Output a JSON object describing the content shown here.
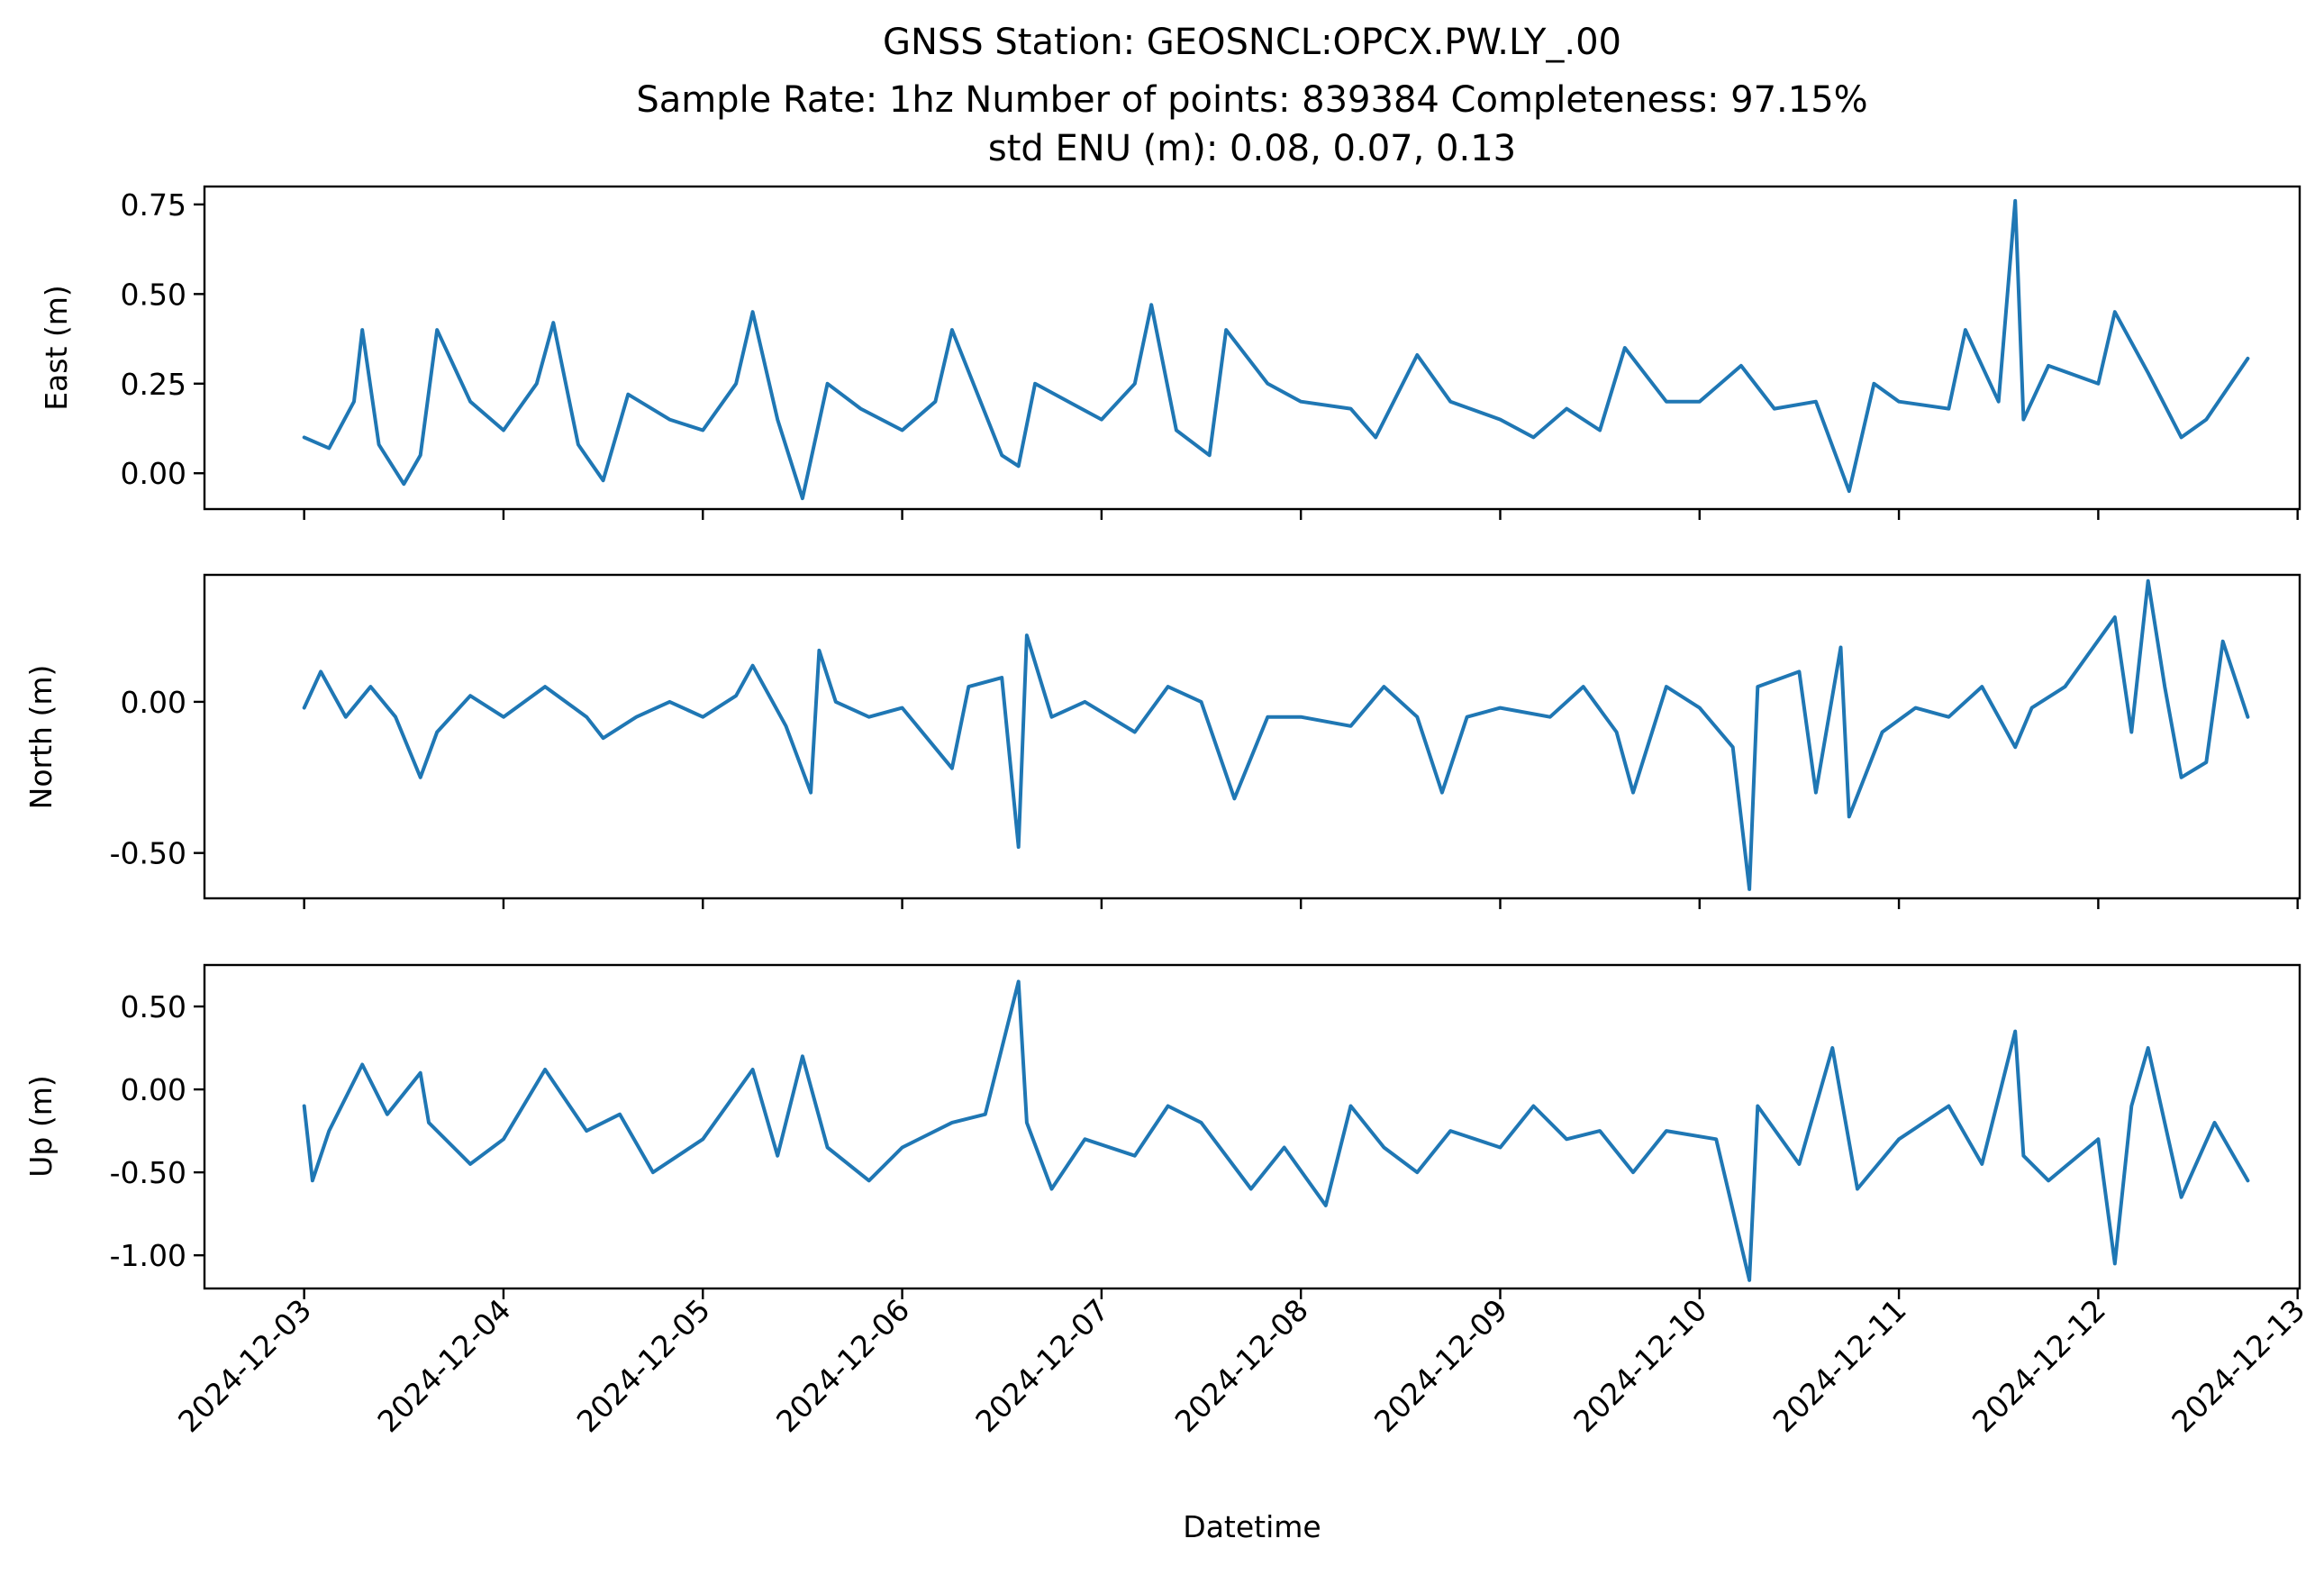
{
  "chart_data": {
    "type": "line",
    "title_lines": [
      "GNSS Station: GEOSNCL:OPCX.PW.LY_.00",
      "Sample Rate: 1hz   Number of points: 839384    Completeness:  97.15%",
      "std ENU (m):  0.08, 0.07, 0.13"
    ],
    "xlabel": "Datetime",
    "x_ticks": [
      "2024-12-03",
      "2024-12-04",
      "2024-12-05",
      "2024-12-06",
      "2024-12-07",
      "2024-12-08",
      "2024-12-09",
      "2024-12-10",
      "2024-12-11",
      "2024-12-12",
      "2024-12-13"
    ],
    "xlim": [
      "2024-12-02T12:00",
      "2024-12-13T00:15"
    ],
    "color": "#1f77b4",
    "grid": false,
    "panels": [
      {
        "ylabel": "East (m)",
        "ylim": [
          -0.1,
          0.8
        ],
        "y_ticks": [
          0.0,
          0.25,
          0.5,
          0.75
        ],
        "y_tick_labels": [
          "0.00",
          "0.25",
          "0.50",
          "0.75"
        ],
        "points": [
          [
            "2024-12-03T00:00",
            0.1
          ],
          [
            "2024-12-03T03:00",
            0.07
          ],
          [
            "2024-12-03T06:00",
            0.2
          ],
          [
            "2024-12-03T07:00",
            0.4
          ],
          [
            "2024-12-03T09:00",
            0.08
          ],
          [
            "2024-12-03T12:00",
            -0.03
          ],
          [
            "2024-12-03T14:00",
            0.05
          ],
          [
            "2024-12-03T16:00",
            0.4
          ],
          [
            "2024-12-03T20:00",
            0.2
          ],
          [
            "2024-12-04T00:00",
            0.12
          ],
          [
            "2024-12-04T04:00",
            0.25
          ],
          [
            "2024-12-04T06:00",
            0.42
          ],
          [
            "2024-12-04T09:00",
            0.08
          ],
          [
            "2024-12-04T12:00",
            -0.02
          ],
          [
            "2024-12-04T15:00",
            0.22
          ],
          [
            "2024-12-04T20:00",
            0.15
          ],
          [
            "2024-12-05T00:00",
            0.12
          ],
          [
            "2024-12-05T04:00",
            0.25
          ],
          [
            "2024-12-05T06:00",
            0.45
          ],
          [
            "2024-12-05T09:00",
            0.15
          ],
          [
            "2024-12-05T12:00",
            -0.07
          ],
          [
            "2024-12-05T15:00",
            0.25
          ],
          [
            "2024-12-05T19:00",
            0.18
          ],
          [
            "2024-12-06T00:00",
            0.12
          ],
          [
            "2024-12-06T04:00",
            0.2
          ],
          [
            "2024-12-06T06:00",
            0.4
          ],
          [
            "2024-12-06T12:00",
            0.05
          ],
          [
            "2024-12-06T14:00",
            0.02
          ],
          [
            "2024-12-06T16:00",
            0.25
          ],
          [
            "2024-12-06T20:00",
            0.2
          ],
          [
            "2024-12-07T00:00",
            0.15
          ],
          [
            "2024-12-07T04:00",
            0.25
          ],
          [
            "2024-12-07T06:00",
            0.47
          ],
          [
            "2024-12-07T09:00",
            0.12
          ],
          [
            "2024-12-07T13:00",
            0.05
          ],
          [
            "2024-12-07T15:00",
            0.4
          ],
          [
            "2024-12-07T20:00",
            0.25
          ],
          [
            "2024-12-08T00:00",
            0.2
          ],
          [
            "2024-12-08T06:00",
            0.18
          ],
          [
            "2024-12-08T09:00",
            0.1
          ],
          [
            "2024-12-08T14:00",
            0.33
          ],
          [
            "2024-12-08T18:00",
            0.2
          ],
          [
            "2024-12-09T00:00",
            0.15
          ],
          [
            "2024-12-09T04:00",
            0.1
          ],
          [
            "2024-12-09T08:00",
            0.18
          ],
          [
            "2024-12-09T12:00",
            0.12
          ],
          [
            "2024-12-09T15:00",
            0.35
          ],
          [
            "2024-12-09T20:00",
            0.2
          ],
          [
            "2024-12-10T00:00",
            0.2
          ],
          [
            "2024-12-10T05:00",
            0.3
          ],
          [
            "2024-12-10T09:00",
            0.18
          ],
          [
            "2024-12-10T14:00",
            0.2
          ],
          [
            "2024-12-10T18:00",
            -0.05
          ],
          [
            "2024-12-10T21:00",
            0.25
          ],
          [
            "2024-12-11T00:00",
            0.2
          ],
          [
            "2024-12-11T06:00",
            0.18
          ],
          [
            "2024-12-11T08:00",
            0.4
          ],
          [
            "2024-12-11T12:00",
            0.2
          ],
          [
            "2024-12-11T14:00",
            0.76
          ],
          [
            "2024-12-11T15:00",
            0.15
          ],
          [
            "2024-12-11T18:00",
            0.3
          ],
          [
            "2024-12-12T00:00",
            0.25
          ],
          [
            "2024-12-12T02:00",
            0.45
          ],
          [
            "2024-12-12T06:00",
            0.28
          ],
          [
            "2024-12-12T10:00",
            0.1
          ],
          [
            "2024-12-12T13:00",
            0.15
          ],
          [
            "2024-12-12T18:00",
            0.32
          ]
        ]
      },
      {
        "ylabel": "North (m)",
        "ylim": [
          -0.65,
          0.42
        ],
        "y_ticks": [
          0.0,
          -0.5
        ],
        "y_tick_labels": [
          "0.00",
          "-0.50"
        ],
        "points": [
          [
            "2024-12-03T00:00",
            -0.02
          ],
          [
            "2024-12-03T02:00",
            0.1
          ],
          [
            "2024-12-03T05:00",
            -0.05
          ],
          [
            "2024-12-03T08:00",
            0.05
          ],
          [
            "2024-12-03T11:00",
            -0.05
          ],
          [
            "2024-12-03T14:00",
            -0.25
          ],
          [
            "2024-12-03T16:00",
            -0.1
          ],
          [
            "2024-12-03T20:00",
            0.02
          ],
          [
            "2024-12-04T00:00",
            -0.05
          ],
          [
            "2024-12-04T05:00",
            0.05
          ],
          [
            "2024-12-04T10:00",
            -0.05
          ],
          [
            "2024-12-04T12:00",
            -0.12
          ],
          [
            "2024-12-04T16:00",
            -0.05
          ],
          [
            "2024-12-04T20:00",
            0.0
          ],
          [
            "2024-12-05T00:00",
            -0.05
          ],
          [
            "2024-12-05T04:00",
            0.02
          ],
          [
            "2024-12-05T06:00",
            0.12
          ],
          [
            "2024-12-05T10:00",
            -0.08
          ],
          [
            "2024-12-05T13:00",
            -0.3
          ],
          [
            "2024-12-05T14:00",
            0.17
          ],
          [
            "2024-12-05T16:00",
            0.0
          ],
          [
            "2024-12-05T20:00",
            -0.05
          ],
          [
            "2024-12-06T00:00",
            -0.02
          ],
          [
            "2024-12-06T06:00",
            -0.22
          ],
          [
            "2024-12-06T08:00",
            0.05
          ],
          [
            "2024-12-06T12:00",
            0.08
          ],
          [
            "2024-12-06T14:00",
            -0.48
          ],
          [
            "2024-12-06T15:00",
            0.22
          ],
          [
            "2024-12-06T18:00",
            -0.05
          ],
          [
            "2024-12-06T22:00",
            0.0
          ],
          [
            "2024-12-07T04:00",
            -0.1
          ],
          [
            "2024-12-07T08:00",
            0.05
          ],
          [
            "2024-12-07T12:00",
            0.0
          ],
          [
            "2024-12-07T16:00",
            -0.32
          ],
          [
            "2024-12-07T20:00",
            -0.05
          ],
          [
            "2024-12-08T00:00",
            -0.05
          ],
          [
            "2024-12-08T06:00",
            -0.08
          ],
          [
            "2024-12-08T10:00",
            0.05
          ],
          [
            "2024-12-08T14:00",
            -0.05
          ],
          [
            "2024-12-08T17:00",
            -0.3
          ],
          [
            "2024-12-08T20:00",
            -0.05
          ],
          [
            "2024-12-09T00:00",
            -0.02
          ],
          [
            "2024-12-09T06:00",
            -0.05
          ],
          [
            "2024-12-09T10:00",
            0.05
          ],
          [
            "2024-12-09T14:00",
            -0.1
          ],
          [
            "2024-12-09T16:00",
            -0.3
          ],
          [
            "2024-12-09T20:00",
            0.05
          ],
          [
            "2024-12-10T00:00",
            -0.02
          ],
          [
            "2024-12-10T04:00",
            -0.15
          ],
          [
            "2024-12-10T06:00",
            -0.62
          ],
          [
            "2024-12-10T07:00",
            0.05
          ],
          [
            "2024-12-10T12:00",
            0.1
          ],
          [
            "2024-12-10T14:00",
            -0.3
          ],
          [
            "2024-12-10T17:00",
            0.18
          ],
          [
            "2024-12-10T18:00",
            -0.38
          ],
          [
            "2024-12-10T22:00",
            -0.1
          ],
          [
            "2024-12-11T02:00",
            -0.02
          ],
          [
            "2024-12-11T06:00",
            -0.05
          ],
          [
            "2024-12-11T10:00",
            0.05
          ],
          [
            "2024-12-11T14:00",
            -0.15
          ],
          [
            "2024-12-11T16:00",
            -0.02
          ],
          [
            "2024-12-11T20:00",
            0.05
          ],
          [
            "2024-12-12T02:00",
            0.28
          ],
          [
            "2024-12-12T04:00",
            -0.1
          ],
          [
            "2024-12-12T06:00",
            0.4
          ],
          [
            "2024-12-12T08:00",
            0.05
          ],
          [
            "2024-12-12T10:00",
            -0.25
          ],
          [
            "2024-12-12T13:00",
            -0.2
          ],
          [
            "2024-12-12T15:00",
            0.2
          ],
          [
            "2024-12-12T18:00",
            -0.05
          ]
        ]
      },
      {
        "ylabel": "Up (m)",
        "ylim": [
          -1.2,
          0.75
        ],
        "y_ticks": [
          0.5,
          0.0,
          -0.5,
          -1.0
        ],
        "y_tick_labels": [
          "0.50",
          "0.00",
          "-0.50",
          "-1.00"
        ],
        "points": [
          [
            "2024-12-03T00:00",
            -0.1
          ],
          [
            "2024-12-03T01:00",
            -0.55
          ],
          [
            "2024-12-03T03:00",
            -0.25
          ],
          [
            "2024-12-03T07:00",
            0.15
          ],
          [
            "2024-12-03T10:00",
            -0.15
          ],
          [
            "2024-12-03T14:00",
            0.1
          ],
          [
            "2024-12-03T15:00",
            -0.2
          ],
          [
            "2024-12-03T20:00",
            -0.45
          ],
          [
            "2024-12-04T00:00",
            -0.3
          ],
          [
            "2024-12-04T05:00",
            0.12
          ],
          [
            "2024-12-04T10:00",
            -0.25
          ],
          [
            "2024-12-04T14:00",
            -0.15
          ],
          [
            "2024-12-04T18:00",
            -0.5
          ],
          [
            "2024-12-05T00:00",
            -0.3
          ],
          [
            "2024-12-05T06:00",
            0.12
          ],
          [
            "2024-12-05T09:00",
            -0.4
          ],
          [
            "2024-12-05T12:00",
            0.2
          ],
          [
            "2024-12-05T15:00",
            -0.35
          ],
          [
            "2024-12-05T20:00",
            -0.55
          ],
          [
            "2024-12-06T00:00",
            -0.35
          ],
          [
            "2024-12-06T06:00",
            -0.2
          ],
          [
            "2024-12-06T10:00",
            -0.15
          ],
          [
            "2024-12-06T14:00",
            0.65
          ],
          [
            "2024-12-06T15:00",
            -0.2
          ],
          [
            "2024-12-06T18:00",
            -0.6
          ],
          [
            "2024-12-06T22:00",
            -0.3
          ],
          [
            "2024-12-07T04:00",
            -0.4
          ],
          [
            "2024-12-07T08:00",
            -0.1
          ],
          [
            "2024-12-07T12:00",
            -0.2
          ],
          [
            "2024-12-07T18:00",
            -0.6
          ],
          [
            "2024-12-07T22:00",
            -0.35
          ],
          [
            "2024-12-08T03:00",
            -0.7
          ],
          [
            "2024-12-08T06:00",
            -0.1
          ],
          [
            "2024-12-08T10:00",
            -0.35
          ],
          [
            "2024-12-08T14:00",
            -0.5
          ],
          [
            "2024-12-08T18:00",
            -0.25
          ],
          [
            "2024-12-09T00:00",
            -0.35
          ],
          [
            "2024-12-09T04:00",
            -0.1
          ],
          [
            "2024-12-09T08:00",
            -0.3
          ],
          [
            "2024-12-09T12:00",
            -0.25
          ],
          [
            "2024-12-09T16:00",
            -0.5
          ],
          [
            "2024-12-09T20:00",
            -0.25
          ],
          [
            "2024-12-10T02:00",
            -0.3
          ],
          [
            "2024-12-10T06:00",
            -1.15
          ],
          [
            "2024-12-10T07:00",
            -0.1
          ],
          [
            "2024-12-10T12:00",
            -0.45
          ],
          [
            "2024-12-10T16:00",
            0.25
          ],
          [
            "2024-12-10T19:00",
            -0.6
          ],
          [
            "2024-12-11T00:00",
            -0.3
          ],
          [
            "2024-12-11T06:00",
            -0.1
          ],
          [
            "2024-12-11T10:00",
            -0.45
          ],
          [
            "2024-12-11T14:00",
            0.35
          ],
          [
            "2024-12-11T15:00",
            -0.4
          ],
          [
            "2024-12-11T18:00",
            -0.55
          ],
          [
            "2024-12-12T00:00",
            -0.3
          ],
          [
            "2024-12-12T02:00",
            -1.05
          ],
          [
            "2024-12-12T04:00",
            -0.1
          ],
          [
            "2024-12-12T06:00",
            0.25
          ],
          [
            "2024-12-12T10:00",
            -0.65
          ],
          [
            "2024-12-12T14:00",
            -0.2
          ],
          [
            "2024-12-12T18:00",
            -0.55
          ]
        ]
      }
    ]
  }
}
